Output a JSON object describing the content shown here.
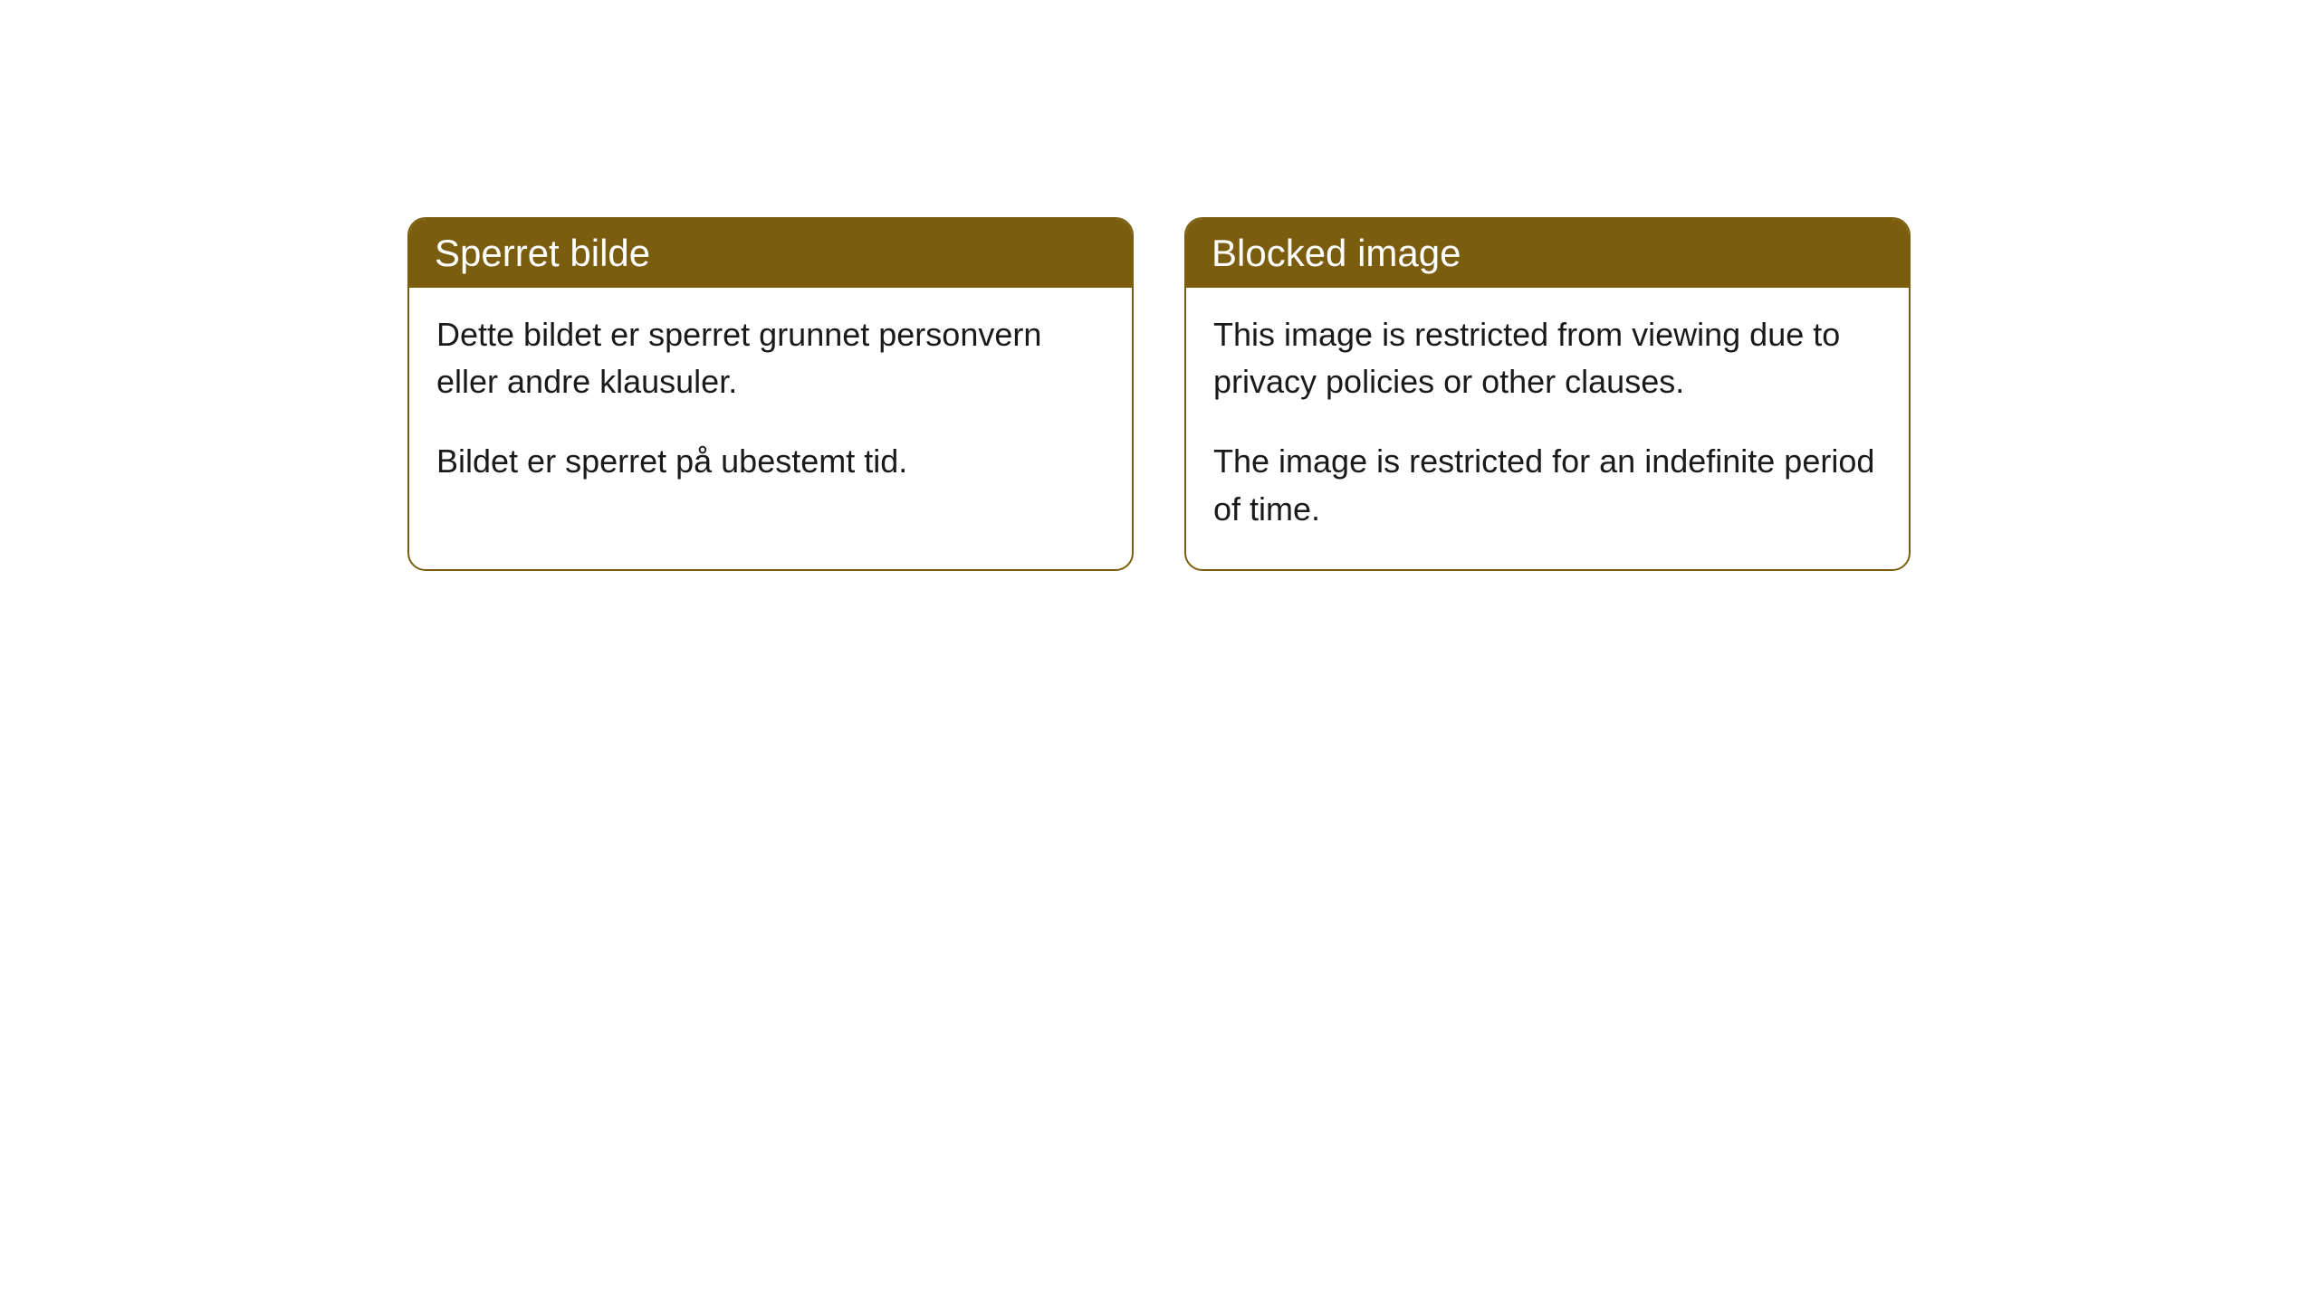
{
  "cards": [
    {
      "title": "Sperret bilde",
      "paragraph1": "Dette bildet er sperret grunnet personvern eller andre klausuler.",
      "paragraph2": "Bildet er sperret på ubestemt tid."
    },
    {
      "title": "Blocked image",
      "paragraph1": "This image is restricted from viewing due to privacy policies or other clauses.",
      "paragraph2": "The image is restricted for an indefinite period of time."
    }
  ],
  "styling": {
    "header_background": "#7a5d0f",
    "header_text_color": "#ffffff",
    "border_color": "#7a5d0f",
    "body_background": "#ffffff",
    "body_text_color": "#1a1a1a",
    "border_radius": 20,
    "header_fontsize": 42,
    "body_fontsize": 36
  }
}
